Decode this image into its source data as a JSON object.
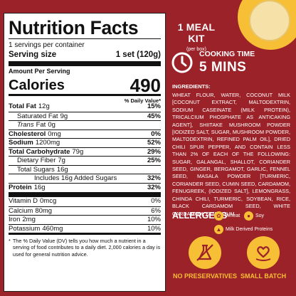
{
  "nutrition": {
    "title": "Nutrition Facts",
    "servings_per_container": "1 servings per container",
    "serving_size_label": "Serving size",
    "serving_size_value": "1 set (120g)",
    "amount_per_serving": "Amount Per Serving",
    "calories_label": "Calories",
    "calories_value": "490",
    "daily_value_header": "% Daily Value*",
    "rows": [
      {
        "name": "Total Fat",
        "amount": "12g",
        "dv": "15%"
      },
      {
        "name": "Saturated Fat",
        "amount": "9g",
        "dv": "45%"
      },
      {
        "name": "Trans",
        "name_suffix": "Fat",
        "amount": "0g",
        "dv": ""
      },
      {
        "name": "Cholesterol",
        "amount": "0mg",
        "dv": "0%"
      },
      {
        "name": "Sodium",
        "amount": "1200mg",
        "dv": "52%"
      },
      {
        "name": "Total Carbohydrate",
        "amount": "79g",
        "dv": "29%"
      },
      {
        "name": "Dietary Fiber",
        "amount": "7g",
        "dv": "25%"
      },
      {
        "name": "Total Sugars",
        "amount": "16g",
        "dv": ""
      },
      {
        "name": "Includes 16g Added Sugars",
        "amount": "",
        "dv": "32%"
      },
      {
        "name": "Protein",
        "amount": "16g",
        "dv": "32%"
      },
      {
        "name": "Vitamin D",
        "amount": "0mcg",
        "dv": "0%"
      },
      {
        "name": "Calcium",
        "amount": "80mg",
        "dv": "6%"
      },
      {
        "name": "Iron",
        "amount": "2mg",
        "dv": "10%"
      },
      {
        "name": "Potassium",
        "amount": "460mg",
        "dv": "10%"
      }
    ],
    "footnote_star": "*",
    "footnote": "The % Daily Value (DV) tells you how much a nutrient in a serving of food contributes to a daily diet. 2,000 calories a day is used for general nutrition advice."
  },
  "meal": {
    "title": "1 MEAL KIT",
    "subtitle": "(per box)"
  },
  "cooking": {
    "label": "COOKING TIME",
    "value": "5 MINS",
    "icon": "clock-icon"
  },
  "ingredients": {
    "title": "INGREDIENTS:",
    "text": "WHEAT FLOUR, WATER, COCONUT MILK [COCONUT EXTRACT, MALTODEXTRIN, SODIUM CASEINATE (MILK PROTEIN), TRICALCIUM PHOSPHATE AS ANTICAKING AGENT], SHIITAKE MUSHROOM POWDER [IODIZED SALT, SUGAR, MUSHROOM POWDER, MALTODEXTRIN, REFINED PALM OIL], DRIED CHILI SPUR PEPPER, AND CONTAIN LESS THAN 2% OF EACH OF THE FOLLOWING: SUGAR, GALANGAL, SHALLOT, CORIANDER SEED, GINGER, BERGAMOT, GARLIC, FENNEL SEED, MASALA POWDER [TURMERIC, CORIANDER SEED, CUMIN SEED, CARDAMOM, FENUGREEK, (IODIZED SALT], LEMONGRASS, CHINDA CHILI, TURMERIC, SOYBEAN, RICE, BLACK CARDAMOM SEED, WHITE CARDAMOM, GUAR GUM."
  },
  "allergens": {
    "title": "ALLERGENS",
    "items": [
      "Wheat",
      "Soy",
      "Milk Derived Proteins"
    ]
  },
  "badges": {
    "no_preservatives": "NO PRESERVATIVES",
    "small_batch": "SMALL BATCH"
  },
  "colors": {
    "background": "#9c2229",
    "accent": "#f7bf35"
  }
}
